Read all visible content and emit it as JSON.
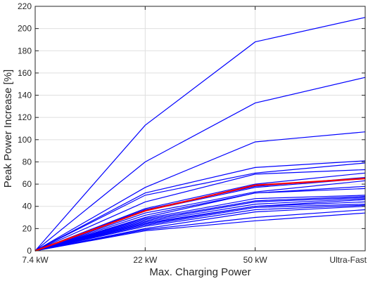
{
  "chart_data": {
    "type": "line",
    "categories": [
      "7.4 kW",
      "22 kW",
      "50 kW",
      "Ultra-Fast"
    ],
    "xlabel": "Max. Charging Power",
    "ylabel": "Peak Power Increase [%]",
    "ylim": [
      0,
      220
    ],
    "yticks": [
      0,
      20,
      40,
      60,
      80,
      100,
      120,
      140,
      160,
      180,
      200,
      220
    ],
    "grid": true,
    "colors": {
      "series": "#0000ff",
      "highlight": "#ff0000",
      "grid": "#dfdfdf",
      "axis": "#262626"
    },
    "series": [
      {
        "values": [
          0,
          113,
          188,
          210
        ]
      },
      {
        "values": [
          0,
          80,
          133,
          156
        ]
      },
      {
        "values": [
          0,
          57,
          98,
          107
        ]
      },
      {
        "values": [
          0,
          52,
          75,
          81
        ]
      },
      {
        "values": [
          0,
          50,
          70,
          79
        ]
      },
      {
        "values": [
          0,
          44,
          69,
          73
        ]
      },
      {
        "values": [
          0,
          38,
          60,
          70
        ]
      },
      {
        "values": [
          0,
          37,
          58,
          66
        ]
      },
      {
        "values": [
          0,
          36,
          57,
          65
        ]
      },
      {
        "values": [
          0,
          34,
          53,
          63
        ]
      },
      {
        "values": [
          0,
          32,
          52,
          58
        ]
      },
      {
        "values": [
          0,
          30,
          52,
          56
        ]
      },
      {
        "values": [
          0,
          29,
          47,
          50
        ]
      },
      {
        "values": [
          0,
          28,
          45,
          49
        ]
      },
      {
        "values": [
          0,
          27,
          44,
          48
        ]
      },
      {
        "values": [
          0,
          26,
          42,
          47
        ]
      },
      {
        "values": [
          0,
          25,
          40,
          46
        ]
      },
      {
        "values": [
          0,
          24,
          40,
          44
        ]
      },
      {
        "values": [
          0,
          23,
          39,
          42
        ]
      },
      {
        "values": [
          0,
          22,
          37,
          41
        ]
      },
      {
        "values": [
          0,
          20,
          35,
          40
        ]
      },
      {
        "values": [
          0,
          19,
          30,
          37
        ]
      },
      {
        "values": [
          0,
          18,
          27,
          34
        ]
      }
    ],
    "highlight": {
      "values": [
        0,
        36,
        59,
        65
      ]
    }
  }
}
